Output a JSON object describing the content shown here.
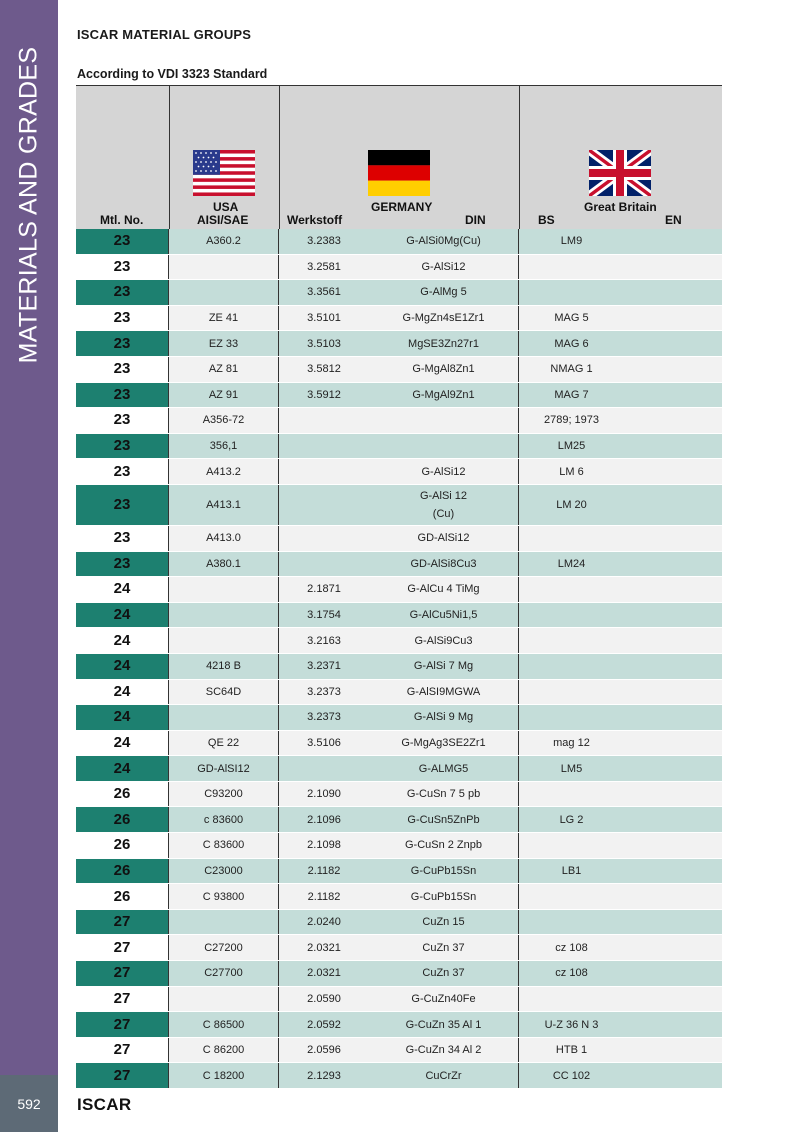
{
  "sidebar": {
    "title": "MATERIALS AND GRADES",
    "page_number": "592"
  },
  "footer": {
    "brand": "ISCAR"
  },
  "title": "ISCAR MATERIAL GROUPS",
  "subtitle": "According to VDI 3323 Standard",
  "colors": {
    "sidebar": "#6e5a8c",
    "accent_cell": "#1d8070",
    "odd_row": "#c4ddd9",
    "even_row": "#f2f2f2",
    "header_bg": "#d5d5d5"
  },
  "header": {
    "mtl_no": "Mtl. No.",
    "usa": "USA",
    "aisi_sae": "AISI/SAE",
    "germany": "GERMANY",
    "werkstoff": "Werkstoff",
    "din": "DIN",
    "great_britain": "Great Britain",
    "bs": "BS",
    "en": "EN",
    "flags": [
      "usa-flag-icon",
      "germany-flag-icon",
      "uk-flag-icon"
    ]
  },
  "rows": [
    {
      "mtl": "23",
      "aisi": "A360.2",
      "werkstoff": "3.2383",
      "din": "G-AlSi0Mg(Cu)",
      "bs": "LM9",
      "en": ""
    },
    {
      "mtl": "23",
      "aisi": "",
      "werkstoff": "3.2581",
      "din": "G-AlSi12",
      "bs": "",
      "en": ""
    },
    {
      "mtl": "23",
      "aisi": "",
      "werkstoff": "3.3561",
      "din": "G-AlMg 5",
      "bs": "",
      "en": ""
    },
    {
      "mtl": "23",
      "aisi": "ZE 41",
      "werkstoff": "3.5101",
      "din": "G-MgZn4sE1Zr1",
      "bs": "MAG 5",
      "en": ""
    },
    {
      "mtl": "23",
      "aisi": "EZ 33",
      "werkstoff": "3.5103",
      "din": "MgSE3Zn27r1",
      "bs": "MAG 6",
      "en": ""
    },
    {
      "mtl": "23",
      "aisi": "AZ 81",
      "werkstoff": "3.5812",
      "din": "G-MgAl8Zn1",
      "bs": "NMAG 1",
      "en": ""
    },
    {
      "mtl": "23",
      "aisi": "AZ 91",
      "werkstoff": "3.5912",
      "din": "G-MgAl9Zn1",
      "bs": "MAG 7",
      "en": ""
    },
    {
      "mtl": "23",
      "aisi": "A356-72",
      "werkstoff": "",
      "din": "",
      "bs": "2789; 1973",
      "en": ""
    },
    {
      "mtl": "23",
      "aisi": "356,1",
      "werkstoff": "",
      "din": "",
      "bs": "LM25",
      "en": ""
    },
    {
      "mtl": "23",
      "aisi": "A413.2",
      "werkstoff": "",
      "din": "G-AlSi12",
      "bs": "LM 6",
      "en": ""
    },
    {
      "mtl": "23",
      "aisi": "A413.1",
      "werkstoff": "",
      "din": "G-AlSi 12",
      "din2": "(Cu)",
      "bs": "LM 20",
      "en": ""
    },
    {
      "mtl": "23",
      "aisi": "A413.0",
      "werkstoff": "",
      "din": "GD-AlSi12",
      "bs": "",
      "en": ""
    },
    {
      "mtl": "23",
      "aisi": "A380.1",
      "werkstoff": "",
      "din": "GD-AlSi8Cu3",
      "bs": "LM24",
      "en": ""
    },
    {
      "mtl": "24",
      "aisi": "",
      "werkstoff": "2.1871",
      "din": "G-AlCu 4 TiMg",
      "bs": "",
      "en": ""
    },
    {
      "mtl": "24",
      "aisi": "",
      "werkstoff": "3.1754",
      "din": "G-AlCu5Ni1,5",
      "bs": "",
      "en": ""
    },
    {
      "mtl": "24",
      "aisi": "",
      "werkstoff": "3.2163",
      "din": "G-AlSi9Cu3",
      "bs": "",
      "en": ""
    },
    {
      "mtl": "24",
      "aisi": "4218 B",
      "werkstoff": "3.2371",
      "din": "G-AlSi 7 Mg",
      "bs": "",
      "en": ""
    },
    {
      "mtl": "24",
      "aisi": "SC64D",
      "werkstoff": "3.2373",
      "din": "G-AlSI9MGWA",
      "bs": "",
      "en": ""
    },
    {
      "mtl": "24",
      "aisi": "",
      "werkstoff": "3.2373",
      "din": "G-AlSi 9 Mg",
      "bs": "",
      "en": ""
    },
    {
      "mtl": "24",
      "aisi": "QE 22",
      "werkstoff": "3.5106",
      "din": "G-MgAg3SE2Zr1",
      "bs": "mag 12",
      "en": ""
    },
    {
      "mtl": "24",
      "aisi": "GD-AlSI12",
      "werkstoff": "",
      "din": "G-ALMG5",
      "bs": "LM5",
      "en": ""
    },
    {
      "mtl": "26",
      "aisi": "C93200",
      "werkstoff": "2.1090",
      "din": "G-CuSn 7 5 pb",
      "bs": "",
      "en": ""
    },
    {
      "mtl": "26",
      "aisi": "c 83600",
      "werkstoff": "2.1096",
      "din": "G-CuSn5ZnPb",
      "bs": "LG 2",
      "en": ""
    },
    {
      "mtl": "26",
      "aisi": "C 83600",
      "werkstoff": "2.1098",
      "din": "G-CuSn 2 Znpb",
      "bs": "",
      "en": ""
    },
    {
      "mtl": "26",
      "aisi": "C23000",
      "werkstoff": "2.1182",
      "din": "G-CuPb15Sn",
      "bs": "LB1",
      "en": ""
    },
    {
      "mtl": "26",
      "aisi": "C 93800",
      "werkstoff": "2.1182",
      "din": "G-CuPb15Sn",
      "bs": "",
      "en": ""
    },
    {
      "mtl": "27",
      "aisi": "",
      "werkstoff": "2.0240",
      "din": "CuZn 15",
      "bs": "",
      "en": ""
    },
    {
      "mtl": "27",
      "aisi": "C27200",
      "werkstoff": "2.0321",
      "din": "CuZn 37",
      "bs": "cz 108",
      "en": ""
    },
    {
      "mtl": "27",
      "aisi": "C27700",
      "werkstoff": "2.0321",
      "din": "CuZn 37",
      "bs": "cz 108",
      "en": ""
    },
    {
      "mtl": "27",
      "aisi": "",
      "werkstoff": "2.0590",
      "din": "G-CuZn40Fe",
      "bs": "",
      "en": ""
    },
    {
      "mtl": "27",
      "aisi": "C 86500",
      "werkstoff": "2.0592",
      "din": "G-CuZn 35 Al 1",
      "bs": "U-Z 36 N 3",
      "en": ""
    },
    {
      "mtl": "27",
      "aisi": "C 86200",
      "werkstoff": "2.0596",
      "din": "G-CuZn 34 Al 2",
      "bs": "HTB 1",
      "en": ""
    },
    {
      "mtl": "27",
      "aisi": "C 18200",
      "werkstoff": "2.1293",
      "din": "CuCrZr",
      "bs": "CC 102",
      "en": ""
    }
  ]
}
